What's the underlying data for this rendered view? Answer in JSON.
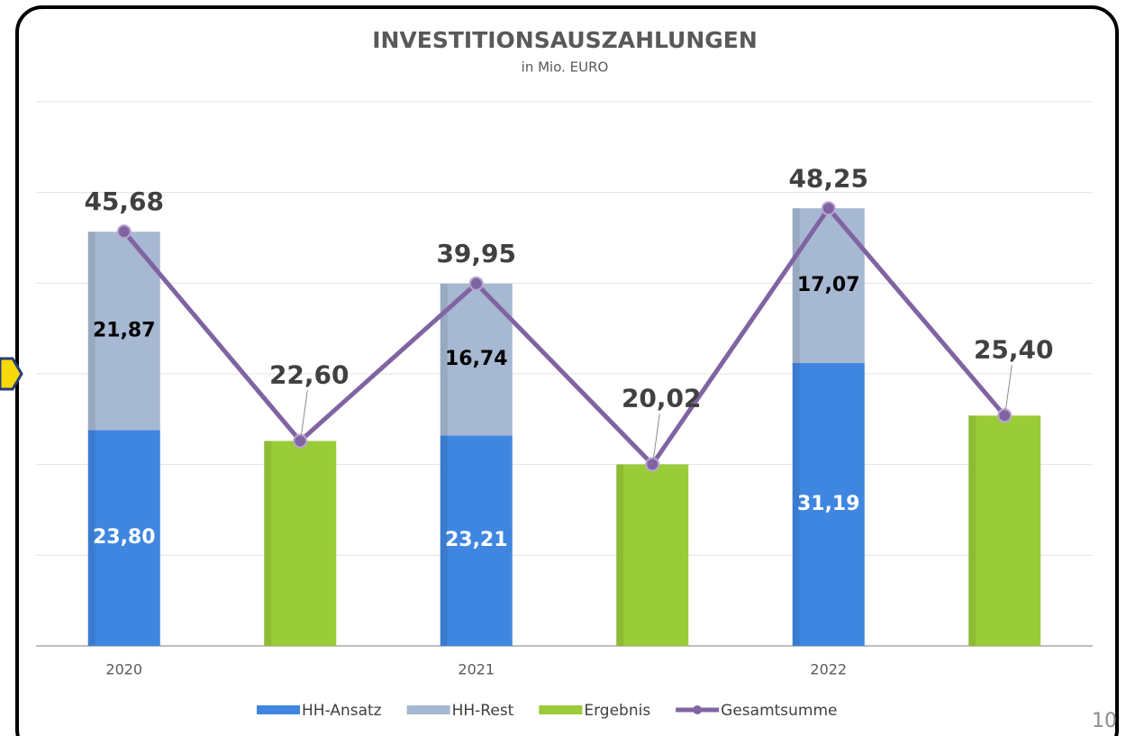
{
  "chart_data": {
    "type": "bar",
    "title": "INVESTITIONSAUSZAHLUNGEN",
    "subtitle": "in Mio. EURO",
    "stacked": true,
    "categories": [
      "2020",
      null,
      "2021",
      null,
      "2022",
      null
    ],
    "ylim": [
      0,
      60
    ],
    "yticks": [
      0,
      10,
      20,
      30,
      40,
      50,
      60
    ],
    "grid": true,
    "legend": "bottom",
    "series": [
      {
        "name": "HH-Ansatz",
        "color": "#3f86e0",
        "values": [
          23.8,
          null,
          23.21,
          null,
          31.19,
          null
        ],
        "value_labels": [
          "23,80",
          null,
          "23,21",
          null,
          "31,19",
          null
        ]
      },
      {
        "name": "HH-Rest",
        "color": "#a6b8d2",
        "values": [
          21.87,
          null,
          16.74,
          null,
          17.07,
          null
        ],
        "value_labels": [
          "21,87",
          null,
          "16,74",
          null,
          "17,07",
          null
        ]
      },
      {
        "name": "Ergebnis",
        "color": "#9acb38",
        "values": [
          null,
          22.6,
          null,
          20.02,
          null,
          25.4
        ]
      },
      {
        "name": "Gesamtsumme",
        "type": "line",
        "color": "#8064a2",
        "values": [
          45.68,
          22.6,
          39.95,
          20.02,
          48.25,
          25.4
        ],
        "value_labels": [
          "45,68",
          "22,60",
          "39,95",
          "20,02",
          "48,25",
          "25,40"
        ]
      }
    ]
  },
  "page_number": "10"
}
